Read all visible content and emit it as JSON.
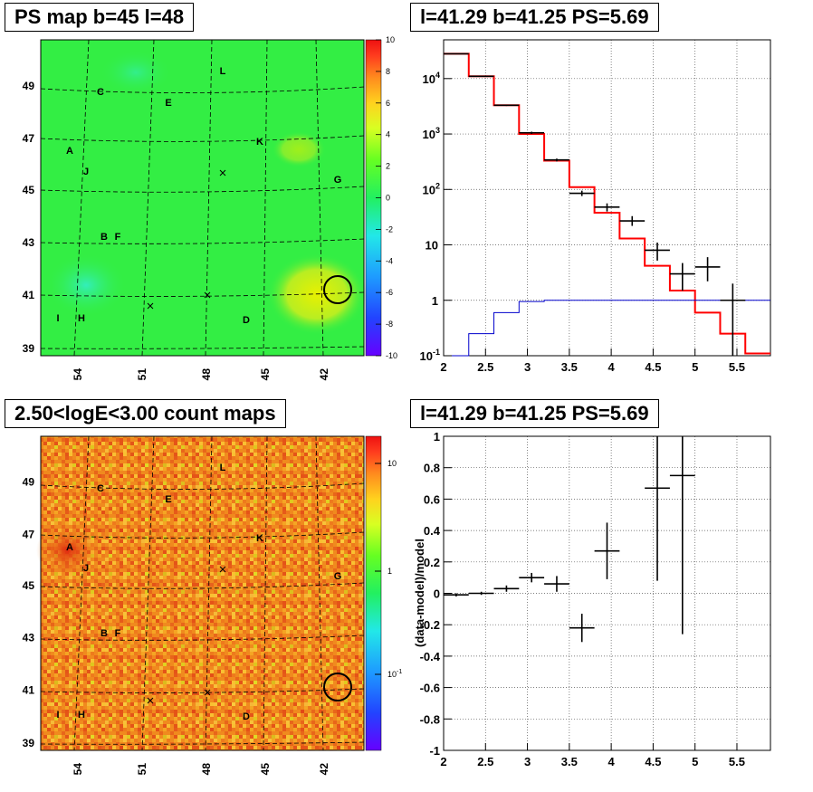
{
  "panels": {
    "ps_map": {
      "title": "PS map b=45 l=48",
      "y_ticks": [
        "39",
        "41",
        "43",
        "45",
        "47",
        "49"
      ],
      "x_ticks": [
        "54",
        "51",
        "48",
        "45",
        "42"
      ],
      "colorbar_ticks": [
        "10",
        "8",
        "6",
        "4",
        "2",
        "0",
        "-2",
        "-4",
        "-6",
        "-8",
        "-10"
      ]
    },
    "count_map": {
      "title": "2.50<logE<3.00 count maps",
      "y_ticks": [
        "39",
        "41",
        "43",
        "45",
        "47",
        "49"
      ],
      "x_ticks": [
        "54",
        "51",
        "48",
        "45",
        "42"
      ],
      "colorbar_ticks": [
        "10",
        "1"
      ],
      "colorbar_tick_power": {
        "base": "10",
        "exp": "-1"
      }
    },
    "spectrum": {
      "title": "l=41.29 b=41.25 PS=5.69"
    },
    "residual": {
      "title": "l=41.29 b=41.25 PS=5.69"
    }
  },
  "map_labels": [
    "L",
    "C",
    "E",
    "K",
    "A",
    "J",
    "G",
    "B",
    "F",
    "I",
    "H",
    "D"
  ],
  "colors": {
    "model_line": "#ff0000",
    "source_line": "#0000cc",
    "data_marker": "#000000",
    "ps_map_bg": "#33ee44",
    "count_map_bg": "#f08a1e"
  },
  "chart_data": [
    {
      "type": "line",
      "name": "spectrum",
      "xlabel": "",
      "ylabel": "",
      "xlim": [
        2,
        5.9
      ],
      "ylim": [
        0.1,
        50000
      ],
      "yscale": "log",
      "grid": true,
      "x_ticks": [
        "2",
        "2.5",
        "3",
        "3.5",
        "4",
        "4.5",
        "5",
        "5.5"
      ],
      "y_ticks": [
        {
          "base": "10",
          "exp": "-1",
          "value": 0.1
        },
        {
          "base": "1",
          "exp": "",
          "value": 1
        },
        {
          "base": "10",
          "exp": "",
          "value": 10
        },
        {
          "base": "10",
          "exp": "2",
          "value": 100
        },
        {
          "base": "10",
          "exp": "3",
          "value": 1000
        },
        {
          "base": "10",
          "exp": "4",
          "value": 10000
        }
      ],
      "bin_edges": [
        2.0,
        2.3,
        2.6,
        2.9,
        3.2,
        3.5,
        3.8,
        4.1,
        4.4,
        4.7,
        5.0,
        5.3,
        5.6,
        5.9
      ],
      "series": [
        {
          "name": "model",
          "values": [
            28000,
            11000,
            3300,
            1000,
            330,
            110,
            38,
            13,
            4.2,
            1.5,
            0.6,
            0.25,
            0.11
          ]
        },
        {
          "name": "source",
          "values": [
            0.07,
            0.25,
            0.6,
            0.95,
            1.0,
            1.0,
            1.0,
            1.0,
            1.0,
            1.0,
            1.0,
            1.0,
            1.0
          ]
        }
      ],
      "data_points": [
        {
          "x": 2.15,
          "y": 28000,
          "lo": 27500,
          "hi": 28500
        },
        {
          "x": 2.45,
          "y": 11000,
          "lo": 10800,
          "hi": 11200
        },
        {
          "x": 2.75,
          "y": 3300,
          "lo": 3200,
          "hi": 3400
        },
        {
          "x": 3.05,
          "y": 1050,
          "lo": 1000,
          "hi": 1100
        },
        {
          "x": 3.35,
          "y": 340,
          "lo": 320,
          "hi": 360
        },
        {
          "x": 3.65,
          "y": 85,
          "lo": 76,
          "hi": 95
        },
        {
          "x": 3.95,
          "y": 48,
          "lo": 40,
          "hi": 56
        },
        {
          "x": 4.25,
          "y": 27,
          "lo": 22,
          "hi": 33
        },
        {
          "x": 4.55,
          "y": 8,
          "lo": 5.2,
          "hi": 11
        },
        {
          "x": 4.85,
          "y": 3,
          "lo": 1.5,
          "hi": 4.7
        },
        {
          "x": 5.15,
          "y": 4,
          "lo": 2.2,
          "hi": 6
        },
        {
          "x": 5.45,
          "y": 1,
          "lo": 0.1,
          "hi": 2
        }
      ]
    },
    {
      "type": "scatter",
      "name": "residual",
      "xlabel": "",
      "ylabel": "(data-model)/model",
      "xlim": [
        2,
        5.9
      ],
      "ylim": [
        -1,
        1
      ],
      "grid": true,
      "x_ticks": [
        "2",
        "2.5",
        "3",
        "3.5",
        "4",
        "4.5",
        "5",
        "5.5"
      ],
      "y_ticks": [
        "-1",
        "-0.8",
        "-0.6",
        "-0.4",
        "-0.2",
        "0",
        "0.2",
        "0.4",
        "0.6",
        "0.8",
        "1"
      ],
      "points": [
        {
          "x": 2.15,
          "y": -0.01,
          "err": 0.01
        },
        {
          "x": 2.45,
          "y": 0.0,
          "err": 0.01
        },
        {
          "x": 2.75,
          "y": 0.03,
          "err": 0.02
        },
        {
          "x": 3.05,
          "y": 0.1,
          "err": 0.03
        },
        {
          "x": 3.35,
          "y": 0.06,
          "err": 0.05
        },
        {
          "x": 3.65,
          "y": -0.22,
          "err": 0.09
        },
        {
          "x": 3.95,
          "y": 0.27,
          "err": 0.18
        },
        {
          "x": 4.55,
          "y": 0.67,
          "err": 0.59
        },
        {
          "x": 4.85,
          "y": 0.75,
          "err": 1.01
        }
      ]
    }
  ]
}
